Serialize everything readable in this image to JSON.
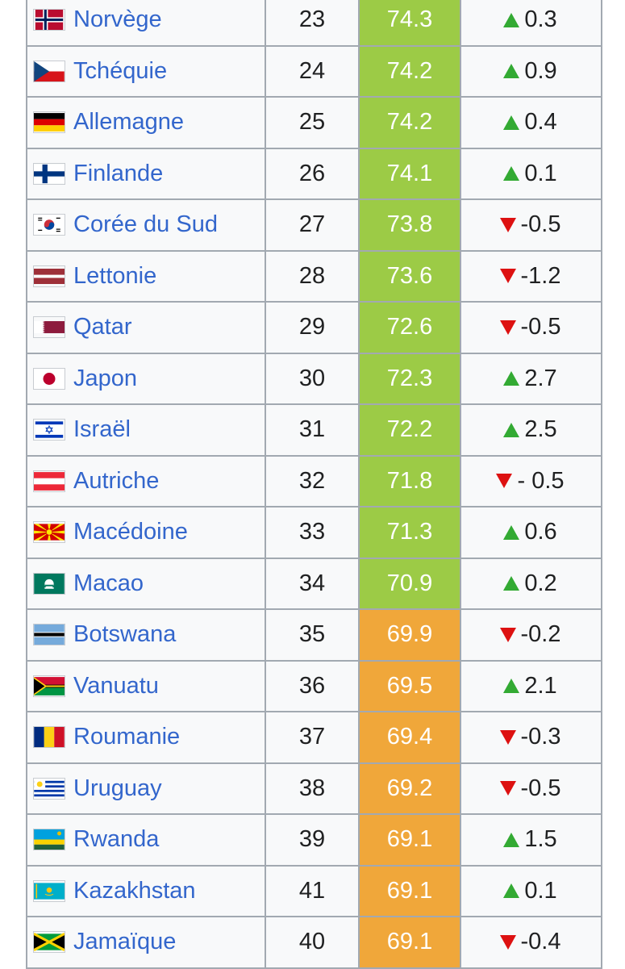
{
  "colors": {
    "green": "#9ccb46",
    "orange": "#f0a73a",
    "link": "#3366cc"
  },
  "rows": [
    {
      "country": "Norvège",
      "flag": "norway-flag-icon",
      "rank": "23",
      "score": "74.3",
      "band": "green",
      "dir": "up",
      "change": "0.3"
    },
    {
      "country": "Tchéquie",
      "flag": "czech-flag-icon",
      "rank": "24",
      "score": "74.2",
      "band": "green",
      "dir": "up",
      "change": "0.9"
    },
    {
      "country": "Allemagne",
      "flag": "germany-flag-icon",
      "rank": "25",
      "score": "74.2",
      "band": "green",
      "dir": "up",
      "change": "0.4"
    },
    {
      "country": "Finlande",
      "flag": "finland-flag-icon",
      "rank": "26",
      "score": "74.1",
      "band": "green",
      "dir": "up",
      "change": "0.1"
    },
    {
      "country": "Corée du Sud",
      "flag": "south-korea-flag-icon",
      "rank": "27",
      "score": "73.8",
      "band": "green",
      "dir": "down",
      "change": "-0.5"
    },
    {
      "country": "Lettonie",
      "flag": "latvia-flag-icon",
      "rank": "28",
      "score": "73.6",
      "band": "green",
      "dir": "down",
      "change": "-1.2"
    },
    {
      "country": "Qatar",
      "flag": "qatar-flag-icon",
      "rank": "29",
      "score": "72.6",
      "band": "green",
      "dir": "down",
      "change": "-0.5"
    },
    {
      "country": "Japon",
      "flag": "japan-flag-icon",
      "rank": "30",
      "score": "72.3",
      "band": "green",
      "dir": "up",
      "change": "2.7"
    },
    {
      "country": "Israël",
      "flag": "israel-flag-icon",
      "rank": "31",
      "score": "72.2",
      "band": "green",
      "dir": "up",
      "change": "2.5"
    },
    {
      "country": "Autriche",
      "flag": "austria-flag-icon",
      "rank": "32",
      "score": "71.8",
      "band": "green",
      "dir": "down",
      "change": "- 0.5"
    },
    {
      "country": "Macédoine",
      "flag": "macedonia-flag-icon",
      "rank": "33",
      "score": "71.3",
      "band": "green",
      "dir": "up",
      "change": "0.6"
    },
    {
      "country": "Macao",
      "flag": "macau-flag-icon",
      "rank": "34",
      "score": "70.9",
      "band": "green",
      "dir": "up",
      "change": "0.2"
    },
    {
      "country": "Botswana",
      "flag": "botswana-flag-icon",
      "rank": "35",
      "score": "69.9",
      "band": "orange",
      "dir": "down",
      "change": "-0.2"
    },
    {
      "country": "Vanuatu",
      "flag": "vanuatu-flag-icon",
      "rank": "36",
      "score": "69.5",
      "band": "orange",
      "dir": "up",
      "change": "2.1"
    },
    {
      "country": "Roumanie",
      "flag": "romania-flag-icon",
      "rank": "37",
      "score": "69.4",
      "band": "orange",
      "dir": "down",
      "change": "-0.3"
    },
    {
      "country": "Uruguay",
      "flag": "uruguay-flag-icon",
      "rank": "38",
      "score": "69.2",
      "band": "orange",
      "dir": "down",
      "change": "-0.5"
    },
    {
      "country": "Rwanda",
      "flag": "rwanda-flag-icon",
      "rank": "39",
      "score": "69.1",
      "band": "orange",
      "dir": "up",
      "change": "1.5"
    },
    {
      "country": "Kazakhstan",
      "flag": "kazakhstan-flag-icon",
      "rank": "41",
      "score": "69.1",
      "band": "orange",
      "dir": "up",
      "change": "0.1"
    },
    {
      "country": "Jamaïque",
      "flag": "jamaica-flag-icon",
      "rank": "40",
      "score": "69.1",
      "band": "orange",
      "dir": "down",
      "change": "-0.4"
    }
  ]
}
